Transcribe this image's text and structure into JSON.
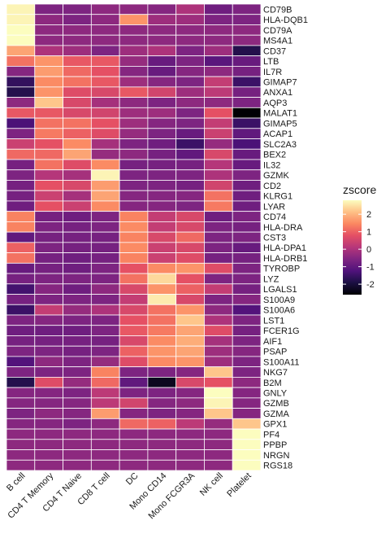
{
  "chart_data": {
    "type": "heatmap",
    "title": "",
    "xlabel": "",
    "ylabel": "",
    "x": [
      "B cell",
      "CD4 T Memory",
      "CD4 T Naive",
      "CD8 T cell",
      "DC",
      "Mono CD14",
      "Mono FCGR3A",
      "NK cell",
      "Platelet"
    ],
    "y": [
      "CD79B",
      "HLA-DQB1",
      "CD79A",
      "MS4A1",
      "CD37",
      "LTB",
      "IL7R",
      "GIMAP7",
      "ANXA1",
      "AQP3",
      "MALAT1",
      "GIMAP5",
      "ACAP1",
      "SLC2A3",
      "BEX2",
      "IL32",
      "GZMK",
      "CD2",
      "KLRG1",
      "LYAR",
      "CD74",
      "HLA-DRA",
      "CST3",
      "HLA-DPA1",
      "HLA-DRB1",
      "TYROBP",
      "LYZ",
      "LGALS1",
      "S100A9",
      "S100A6",
      "LST1",
      "FCER1G",
      "AIF1",
      "PSAP",
      "S100A11",
      "NKG7",
      "B2M",
      "GNLY",
      "GZMB",
      "GZMA",
      "GPX1",
      "PF4",
      "PPBP",
      "NRGN",
      "RGS18"
    ],
    "values": [
      [
        2.7,
        -0.6,
        -0.6,
        -0.4,
        -0.4,
        -0.5,
        0.0,
        -0.8,
        -0.6
      ],
      [
        2.7,
        -0.4,
        -0.6,
        -0.4,
        1.6,
        -0.2,
        -0.2,
        -0.6,
        -0.6
      ],
      [
        2.8,
        -0.4,
        -0.4,
        -0.4,
        -0.4,
        -0.4,
        -0.4,
        -0.4,
        -0.4
      ],
      [
        2.8,
        -0.4,
        -0.4,
        -0.4,
        -0.4,
        -0.4,
        -0.4,
        -0.4,
        -0.4
      ],
      [
        1.8,
        0.0,
        -0.2,
        -0.6,
        -0.2,
        0.0,
        -0.6,
        -0.2,
        -1.8
      ],
      [
        1.2,
        1.6,
        0.9,
        0.9,
        -0.3,
        -0.9,
        -0.6,
        -1.1,
        -0.9
      ],
      [
        -0.5,
        1.7,
        1.1,
        0.8,
        -0.5,
        -0.9,
        -0.5,
        -0.4,
        -0.7
      ],
      [
        -1.6,
        1.5,
        1.2,
        0.9,
        -0.2,
        -0.5,
        -0.6,
        0.3,
        -1.5
      ],
      [
        -1.8,
        1.6,
        0.7,
        0.6,
        0.9,
        0.5,
        -0.2,
        0.2,
        -0.7
      ],
      [
        -0.4,
        2.2,
        0.6,
        -0.1,
        -0.4,
        -0.6,
        -0.4,
        -0.4,
        -0.6
      ],
      [
        0.9,
        0.9,
        0.6,
        0.5,
        -0.2,
        -0.2,
        -0.6,
        0.8,
        -3.0
      ],
      [
        -1.3,
        1.2,
        1.2,
        0.8,
        -0.2,
        -0.5,
        -0.6,
        0.3,
        -1.5
      ],
      [
        -0.6,
        1.3,
        1.0,
        0.7,
        -0.3,
        -0.6,
        -0.9,
        0.4,
        -1.0
      ],
      [
        0.4,
        0.8,
        1.5,
        -0.1,
        -0.6,
        -0.8,
        -1.5,
        -0.3,
        -1.3
      ],
      [
        1.1,
        1.1,
        1.8,
        -0.3,
        -0.4,
        -0.7,
        -1.0,
        0.6,
        -0.9
      ],
      [
        -0.7,
        1.2,
        0.7,
        1.5,
        -0.7,
        -0.7,
        -0.7,
        0.1,
        -0.9
      ],
      [
        -0.6,
        0.1,
        -0.1,
        2.7,
        -0.6,
        -0.6,
        -0.6,
        0.0,
        -0.6
      ],
      [
        -0.7,
        0.8,
        0.6,
        1.7,
        -0.6,
        -0.6,
        -0.7,
        0.5,
        -0.8
      ],
      [
        -0.7,
        0.4,
        -0.1,
        1.8,
        -0.5,
        -0.5,
        -0.5,
        1.2,
        -0.8
      ],
      [
        -0.8,
        0.8,
        0.4,
        1.5,
        -0.5,
        -0.5,
        -0.6,
        1.3,
        -0.8
      ],
      [
        1.4,
        -0.7,
        -0.8,
        -0.6,
        1.4,
        0.3,
        0.6,
        -0.8,
        -0.6
      ],
      [
        1.4,
        -0.6,
        -0.7,
        -0.6,
        1.5,
        0.3,
        0.6,
        -0.6,
        -0.7
      ],
      [
        -1.0,
        -0.7,
        -0.7,
        -0.7,
        1.4,
        0.6,
        1.1,
        -0.6,
        -0.6
      ],
      [
        1.0,
        -0.6,
        -0.7,
        -0.7,
        1.5,
        0.4,
        0.6,
        -0.6,
        -0.9
      ],
      [
        1.2,
        -0.7,
        -0.8,
        -0.7,
        1.4,
        0.4,
        0.7,
        -0.7,
        -0.7
      ],
      [
        -0.9,
        -0.7,
        -0.8,
        -0.6,
        0.8,
        1.5,
        1.6,
        0.7,
        -0.6
      ],
      [
        -0.7,
        -0.6,
        -0.6,
        -0.6,
        1.2,
        2.4,
        0.8,
        -0.6,
        -0.6
      ],
      [
        -1.4,
        -0.5,
        -0.8,
        -0.4,
        0.6,
        1.6,
        1.0,
        0.3,
        -0.7
      ],
      [
        -0.7,
        -0.6,
        -0.6,
        -0.6,
        0.3,
        2.6,
        0.6,
        -0.6,
        -0.5
      ],
      [
        -1.5,
        0.3,
        -0.3,
        0.0,
        0.6,
        1.2,
        1.6,
        -0.4,
        -1.2
      ],
      [
        -0.6,
        -0.5,
        -0.6,
        -0.6,
        0.8,
        1.2,
        2.2,
        0.0,
        -0.6
      ],
      [
        -0.8,
        -0.8,
        -0.8,
        -0.6,
        0.9,
        1.3,
        1.8,
        0.7,
        -0.7
      ],
      [
        -0.7,
        -0.7,
        -0.7,
        -0.7,
        0.6,
        1.5,
        1.9,
        -0.1,
        -0.6
      ],
      [
        -0.6,
        -0.6,
        -0.7,
        -0.6,
        1.0,
        1.6,
        1.8,
        -0.2,
        -0.5
      ],
      [
        -1.2,
        -0.4,
        -0.6,
        -0.3,
        0.7,
        1.5,
        1.6,
        -0.2,
        -0.6
      ],
      [
        -0.6,
        -0.6,
        -0.6,
        1.4,
        -0.6,
        -0.6,
        -0.5,
        2.2,
        -0.6
      ],
      [
        -1.8,
        0.7,
        -0.3,
        1.1,
        -1.0,
        -2.3,
        0.6,
        0.8,
        -0.4
      ],
      [
        -0.5,
        -0.5,
        -0.6,
        0.2,
        -0.6,
        -0.6,
        -0.5,
        2.8,
        -0.5
      ],
      [
        -0.5,
        -0.5,
        -0.5,
        0.2,
        0.5,
        -0.5,
        -0.4,
        2.7,
        -0.5
      ],
      [
        -0.6,
        -0.4,
        -0.5,
        1.7,
        -0.5,
        -0.6,
        -0.5,
        2.2,
        -0.5
      ],
      [
        -0.5,
        -0.5,
        -0.6,
        -0.4,
        1.1,
        1.0,
        0.2,
        -0.3,
        2.2
      ],
      [
        -0.4,
        -0.4,
        -0.4,
        -0.4,
        -0.4,
        -0.4,
        -0.4,
        -0.4,
        2.8
      ],
      [
        -0.4,
        -0.4,
        -0.4,
        -0.4,
        -0.4,
        -0.4,
        -0.4,
        -0.4,
        2.8
      ],
      [
        -0.4,
        -0.4,
        -0.4,
        -0.4,
        -0.4,
        -0.4,
        -0.4,
        -0.4,
        2.8
      ],
      [
        -0.4,
        -0.4,
        -0.4,
        -0.4,
        -0.4,
        -0.4,
        -0.4,
        -0.4,
        2.8
      ]
    ],
    "colorscale": "magma",
    "legend": {
      "title": "zscore",
      "ticks": [
        2,
        1,
        0,
        -1,
        -2
      ],
      "range": [
        -2.6,
        2.8
      ],
      "placement": "right"
    },
    "grid": false
  }
}
